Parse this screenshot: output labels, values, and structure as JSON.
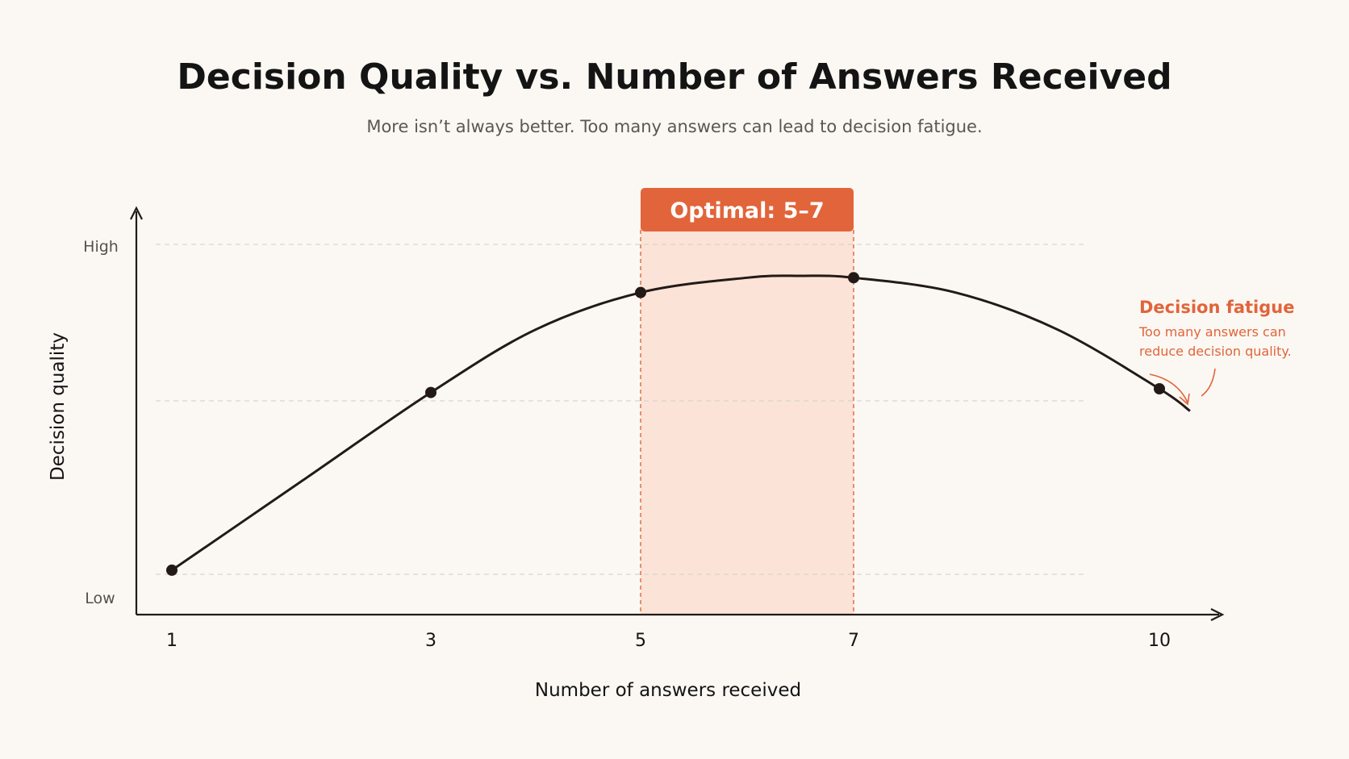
{
  "chart_data": {
    "type": "line",
    "title": "Decision Quality vs. Number of Answers Received",
    "subtitle": "More isn’t always better. Too many answers can lead to decision fatigue.",
    "xlabel": "Number of answers received",
    "ylabel": "Decision quality",
    "x_ticks": [
      "1",
      "3",
      "5",
      "7",
      "10"
    ],
    "y_tick_labels": [
      "High",
      "Low"
    ],
    "xlim": [
      0.75,
      11.4
    ],
    "ylim": [
      0,
      1.05
    ],
    "grid": "horizontal dashed",
    "points": [
      {
        "x": 1,
        "y": 0.12
      },
      {
        "x": 3,
        "y": 0.6
      },
      {
        "x": 5,
        "y": 0.87
      },
      {
        "x": 7,
        "y": 0.91
      },
      {
        "x": 10,
        "y": 0.61
      }
    ],
    "curve": [
      {
        "x": 1,
        "y": 0.12
      },
      {
        "x": 2,
        "y": 0.36
      },
      {
        "x": 3,
        "y": 0.6
      },
      {
        "x": 4,
        "y": 0.77
      },
      {
        "x": 5,
        "y": 0.87
      },
      {
        "x": 6,
        "y": 0.91
      },
      {
        "x": 6.5,
        "y": 0.915
      },
      {
        "x": 7,
        "y": 0.91
      },
      {
        "x": 8,
        "y": 0.87
      },
      {
        "x": 9,
        "y": 0.77
      },
      {
        "x": 10,
        "y": 0.61
      },
      {
        "x": 10.3,
        "y": 0.55
      }
    ],
    "highlight_band": {
      "x_start": 5,
      "x_end": 7,
      "label": "Optimal: 5–7"
    },
    "annotation": {
      "title": "Decision fatigue",
      "lines": [
        "Too many answers can",
        "reduce decision quality."
      ]
    }
  },
  "colors": {
    "background": "#fbf8f3",
    "accent": "#e2643a",
    "band_fill": "#fbe3d7",
    "curve": "#231a17",
    "axis": "#231a17",
    "grid": "#d9d3cd"
  }
}
